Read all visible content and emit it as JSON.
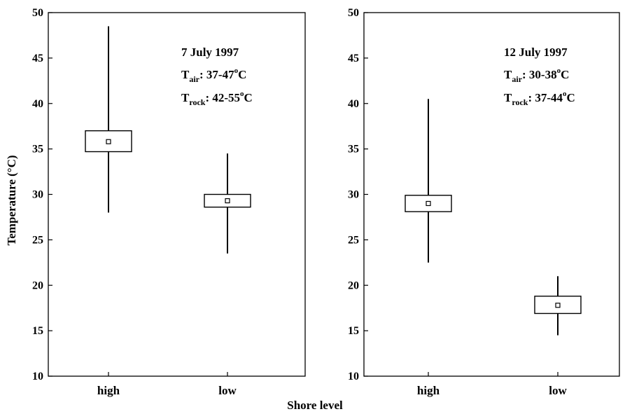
{
  "figure": {
    "xlabel": "Shore level",
    "ylabel": "Temperature (°C)"
  },
  "chart_data": [
    {
      "type": "box",
      "categories": [
        "high",
        "low"
      ],
      "ylim": [
        10,
        50
      ],
      "yticks": [
        10,
        15,
        20,
        25,
        30,
        35,
        40,
        45,
        50
      ],
      "boxes": [
        {
          "category": "high",
          "whisker_low": 28.0,
          "box_low": 34.7,
          "mean": 35.8,
          "box_high": 37.0,
          "whisker_high": 48.5
        },
        {
          "category": "low",
          "whisker_low": 23.5,
          "box_low": 28.6,
          "mean": 29.3,
          "box_high": 30.0,
          "whisker_high": 34.5
        }
      ],
      "annotation": {
        "date": "7 July 1997",
        "air_label": "T",
        "air_sub": "air",
        "air_range": ": 37-47",
        "rock_label": "T",
        "rock_sub": "rock",
        "rock_range": ": 42-55",
        "deg_sup": "o",
        "unit": "C"
      },
      "grid": false
    },
    {
      "type": "box",
      "categories": [
        "high",
        "low"
      ],
      "ylim": [
        10,
        50
      ],
      "yticks": [
        10,
        15,
        20,
        25,
        30,
        35,
        40,
        45,
        50
      ],
      "boxes": [
        {
          "category": "high",
          "whisker_low": 22.5,
          "box_low": 28.1,
          "mean": 29.0,
          "box_high": 29.9,
          "whisker_high": 40.5
        },
        {
          "category": "low",
          "whisker_low": 14.5,
          "box_low": 16.9,
          "mean": 17.8,
          "box_high": 18.8,
          "whisker_high": 21.0
        }
      ],
      "annotation": {
        "date": "12 July 1997",
        "air_label": "T",
        "air_sub": "air",
        "air_range": ": 30-38",
        "rock_label": "T",
        "rock_sub": "rock",
        "rock_range": ": 37-44",
        "deg_sup": "o",
        "unit": "C"
      },
      "grid": false
    }
  ]
}
